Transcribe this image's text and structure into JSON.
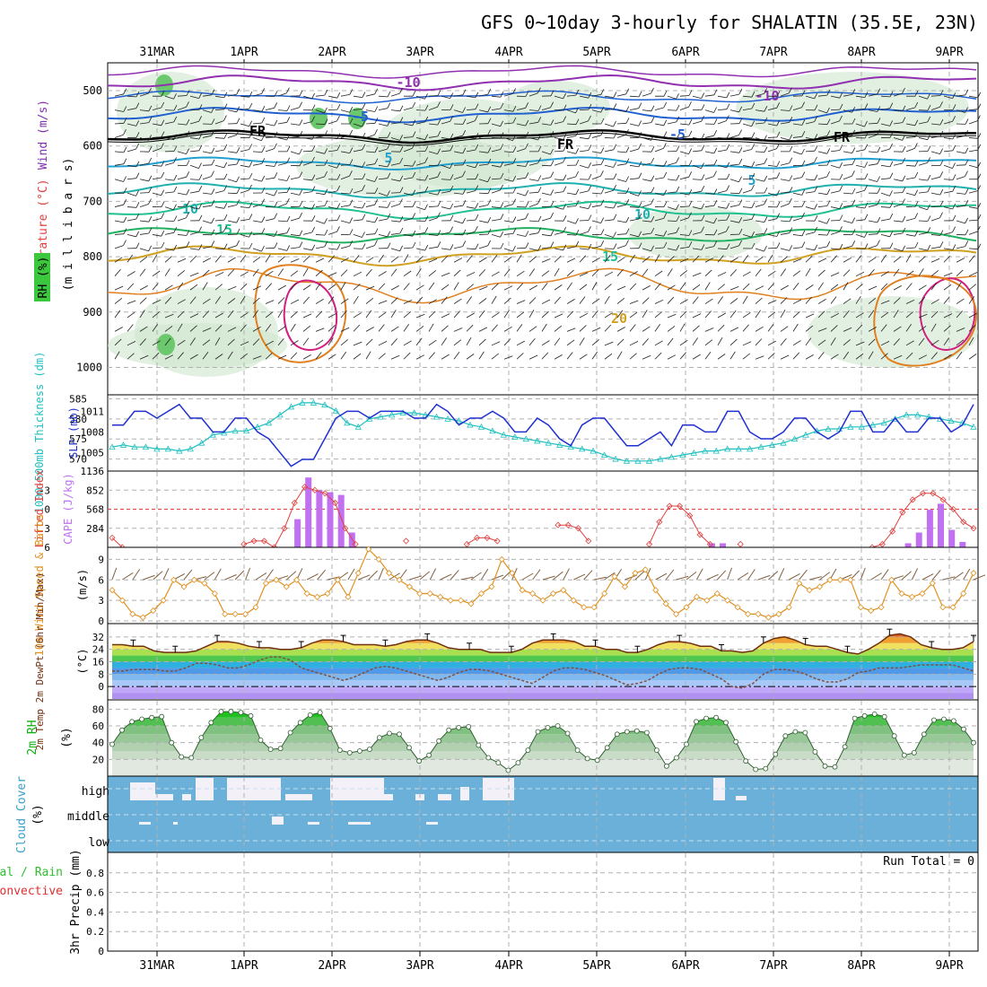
{
  "title": "GFS 0~10day 3-hourly for SHALATIN (35.5E, 23N)",
  "date_labels": [
    "31MAR",
    "1APR",
    "2APR",
    "3APR",
    "4APR",
    "5APR",
    "6APR",
    "7APR",
    "8APR",
    "9APR"
  ],
  "colors": {
    "wind_temp_title": "#8030b0",
    "temp_title": "#e04040",
    "rh_box": "#3cc83c",
    "thickness": "#20c0c0",
    "slp": "#2030d0",
    "cape_bar": "#c070f0",
    "lifted_index": "#e04040",
    "wind10m": "#e09020",
    "barb": "#806040",
    "temp2m": "#703010",
    "dewpt": "#805040",
    "rh_green": "#10b010",
    "cloud_blue": "#6ab0d8",
    "precip_total": "#30c030",
    "precip_conv": "#e03030",
    "grid": "#b0b0b0"
  },
  "upper_panel": {
    "ylabel_wind": "Wind (m/s)",
    "ylabel_temp": "Temperature (°C)",
    "ylabel_rh": "RH (%)",
    "ylabel_mb": "(m i l l i b a r s)",
    "yticks": [
      "500",
      "600",
      "700",
      "800",
      "900",
      "1000"
    ],
    "isotherm_labels": [
      "-10",
      "-5",
      "FR",
      "5",
      "10",
      "15",
      "20"
    ]
  },
  "chart_data": [
    {
      "panel": "thickness-slp",
      "type": "line",
      "ylabel_left": "1000-500mb Thickness (dm)",
      "ylabel_right": "SLP (mb)",
      "thickness_ticks": [
        "585",
        "580",
        "575",
        "570"
      ],
      "slp_ticks": [
        "1011",
        "1008",
        "1005"
      ],
      "ylim_thickness": [
        567,
        586
      ],
      "ylim_slp": [
        1002.3,
        1013.4
      ],
      "series": [
        {
          "name": "1000-500mb Thickness",
          "values": [
            573,
            573.5,
            573,
            573,
            572.5,
            572.5,
            572,
            572.5,
            574,
            576,
            576.5,
            577,
            577,
            578,
            579,
            581,
            583,
            584,
            584,
            583.5,
            582,
            579,
            578,
            580,
            580.5,
            581,
            581.5,
            581.5,
            581,
            580.5,
            580,
            579.5,
            578.5,
            578,
            577,
            576,
            575.5,
            575,
            574.5,
            574,
            573.5,
            573,
            572.5,
            572,
            571,
            570,
            569.5,
            569.5,
            569.5,
            570,
            570.5,
            571,
            571.5,
            572,
            572,
            572.5,
            572.5,
            572.5,
            573,
            573.5,
            574,
            575,
            576,
            577,
            577.5,
            577.5,
            578,
            578,
            578.5,
            579,
            580,
            581,
            581,
            580.5,
            580,
            579.5,
            579,
            578
          ]
        },
        {
          "name": "SLP",
          "values": [
            1009,
            1009,
            1011,
            1011,
            1010,
            1011,
            1012,
            1010,
            1010,
            1008,
            1008,
            1010,
            1010,
            1008,
            1007,
            1005,
            1003,
            1004,
            1004,
            1007,
            1010,
            1011,
            1011,
            1010,
            1011,
            1011,
            1011,
            1010,
            1010,
            1012,
            1011,
            1009,
            1010,
            1010,
            1011,
            1010,
            1008,
            1008,
            1010,
            1009,
            1007,
            1006,
            1009,
            1010,
            1010,
            1008,
            1006,
            1006,
            1007,
            1008,
            1006,
            1009,
            1009,
            1008,
            1008,
            1011,
            1011,
            1008,
            1007,
            1007,
            1008,
            1010,
            1010,
            1008,
            1007,
            1008,
            1011,
            1011,
            1008,
            1008,
            1010,
            1008,
            1008,
            1010,
            1010,
            1008,
            1009,
            1012
          ]
        }
      ]
    },
    {
      "panel": "lifted-index-cape",
      "type": "bar",
      "ylabel_left": "Lifted Index",
      "ylabel_right": "CAPE (J/kg)",
      "li_ticks": [
        "-3",
        "0",
        "3",
        "6"
      ],
      "cape_ticks": [
        "1136",
        "852",
        "568",
        "284"
      ],
      "ylim_li": [
        6,
        -6
      ],
      "ylim_cape": [
        0,
        1136
      ],
      "series": [
        {
          "name": "Lifted Index",
          "values": [
            4.5,
            6,
            null,
            null,
            null,
            null,
            null,
            null,
            null,
            null,
            null,
            null,
            null,
            5.5,
            5,
            5,
            6,
            3,
            -1,
            -3.5,
            -3,
            -2.5,
            -1,
            3,
            5.5,
            null,
            null,
            null,
            null,
            5,
            null,
            null,
            null,
            null,
            null,
            5.5,
            4.5,
            4.5,
            5,
            null,
            null,
            null,
            null,
            null,
            2.5,
            2.5,
            3,
            5,
            null,
            null,
            null,
            null,
            null,
            5.5,
            2,
            -0.5,
            -0.5,
            1,
            4,
            5.5,
            null,
            null,
            5.5,
            null,
            null,
            null,
            null,
            null,
            null,
            null,
            null,
            null,
            null,
            null,
            null,
            6,
            5.5,
            3.5,
            0.5,
            -1.5,
            -2.5,
            -2.5,
            -1.5,
            0,
            2,
            3
          ]
        },
        {
          "name": "CAPE",
          "values": [
            0,
            0,
            0,
            0,
            0,
            0,
            0,
            0,
            0,
            0,
            0,
            0,
            0,
            0,
            0,
            0,
            0,
            420,
            1040,
            850,
            820,
            780,
            220,
            0,
            0,
            0,
            0,
            0,
            0,
            0,
            0,
            0,
            0,
            0,
            0,
            0,
            0,
            0,
            0,
            0,
            0,
            0,
            0,
            0,
            0,
            0,
            0,
            0,
            0,
            0,
            0,
            0,
            0,
            0,
            0,
            60,
            60,
            0,
            0,
            0,
            0,
            0,
            0,
            0,
            0,
            0,
            0,
            0,
            0,
            0,
            0,
            0,
            0,
            60,
            220,
            560,
            650,
            260,
            80,
            0
          ]
        }
      ]
    },
    {
      "panel": "wind10m",
      "type": "line",
      "ylabel_left": "10m Wind Speed & Barbs",
      "ylabel_right": "(m/s)",
      "ticks": [
        "9",
        "6",
        "3",
        "0"
      ],
      "ylim": [
        0,
        10.5
      ],
      "series": [
        {
          "name": "10m Wind Speed",
          "values": [
            4.5,
            3,
            1,
            0.5,
            1.5,
            3,
            6,
            5,
            6,
            5.5,
            4,
            1,
            1,
            1,
            2,
            5.5,
            6,
            5,
            6,
            4,
            3.5,
            4,
            6,
            3.5,
            7,
            10.5,
            9,
            7,
            6,
            5,
            4,
            4,
            3.5,
            3,
            3,
            2.5,
            4,
            5,
            9,
            7,
            4.5,
            4,
            3,
            4,
            4.5,
            3,
            2,
            2,
            4,
            6.5,
            5,
            7,
            7.5,
            4.5,
            2.5,
            1,
            2,
            3.5,
            3,
            4,
            3,
            2,
            1,
            1,
            0.5,
            1,
            2,
            5.5,
            4.5,
            5,
            6,
            6,
            6,
            2,
            1.5,
            2,
            6,
            4,
            3.5,
            4,
            5.5,
            2,
            2,
            4,
            7
          ]
        }
      ]
    },
    {
      "panel": "temp2m",
      "type": "area",
      "ylabel_left": "2m Temp 2m DewPt (6hr Min/Max)",
      "ylabel_right": "(°C)",
      "ticks": [
        "32",
        "24",
        "16",
        "8",
        "0"
      ],
      "ylim": [
        -8,
        40
      ],
      "series": [
        {
          "name": "2m Temp",
          "values": [
            27,
            27,
            26,
            26,
            23,
            22,
            22,
            22,
            23,
            26,
            29,
            29,
            28,
            26,
            25,
            25,
            24,
            24,
            25,
            28,
            30,
            30,
            29,
            27,
            27,
            27,
            26,
            27,
            29,
            30,
            30,
            28,
            25,
            24,
            24,
            24,
            22,
            22,
            22,
            24,
            28,
            30,
            30,
            30,
            29,
            26,
            26,
            24,
            24,
            22,
            22,
            24,
            27,
            29,
            29,
            28,
            26,
            26,
            23,
            23,
            22,
            23,
            28,
            31,
            32,
            30,
            27,
            26,
            26,
            24,
            22,
            21,
            24,
            28,
            33,
            34,
            32,
            27,
            25,
            24,
            24,
            25,
            29
          ]
        },
        {
          "name": "2m DewPt",
          "values": [
            10,
            10,
            11,
            11,
            11,
            10,
            10,
            12,
            15,
            15,
            14,
            12,
            12,
            14,
            17,
            19,
            19,
            17,
            12,
            10,
            8,
            6,
            4,
            6,
            9,
            12,
            13,
            12,
            10,
            8,
            6,
            4,
            6,
            9,
            11,
            11,
            10,
            8,
            6,
            4,
            2,
            6,
            10,
            12,
            12,
            11,
            9,
            7,
            4,
            1,
            2,
            4,
            8,
            11,
            12,
            12,
            11,
            8,
            5,
            0,
            -1,
            2,
            8,
            11,
            11,
            10,
            8,
            5,
            3,
            3,
            5,
            9,
            10,
            12,
            12,
            12,
            13,
            14,
            14,
            14,
            14,
            12,
            10
          ]
        }
      ]
    },
    {
      "panel": "rh2m",
      "type": "area",
      "ylabel_left": "2m RH",
      "ylabel_right": "(%)",
      "ticks": [
        "80",
        "60",
        "40",
        "20"
      ],
      "ylim": [
        0,
        90
      ],
      "series": [
        {
          "name": "2m RH",
          "values": [
            38,
            55,
            65,
            68,
            70,
            71,
            40,
            23,
            22,
            46,
            64,
            77,
            77,
            76,
            72,
            43,
            32,
            33,
            52,
            64,
            73,
            76,
            57,
            31,
            28,
            30,
            32,
            46,
            51,
            50,
            34,
            18,
            25,
            42,
            55,
            58,
            59,
            37,
            22,
            16,
            7,
            16,
            31,
            53,
            58,
            60,
            51,
            31,
            21,
            19,
            34,
            50,
            53,
            54,
            52,
            31,
            12,
            22,
            38,
            65,
            69,
            70,
            64,
            41,
            18,
            8,
            9,
            26,
            48,
            53,
            52,
            29,
            12,
            11,
            35,
            69,
            72,
            74,
            71,
            48,
            25,
            28,
            50,
            67,
            68,
            66,
            56,
            40
          ]
        }
      ]
    },
    {
      "panel": "cloud-cover",
      "type": "bar",
      "ylabel_left": "Cloud Cover",
      "ylabel_right": "(%)",
      "levels": [
        "high",
        "middle",
        "low"
      ]
    },
    {
      "panel": "precip",
      "type": "bar",
      "ylabel_left_1": "Total / Rain",
      "ylabel_left_2": "Convective",
      "ylabel_right": "3hr Precip (mm)",
      "ticks": [
        "0.8",
        "0.6",
        "0.4",
        "0.2",
        "0"
      ],
      "ylim": [
        0,
        1
      ],
      "values": [],
      "run_total": "Run Total = 0"
    }
  ]
}
